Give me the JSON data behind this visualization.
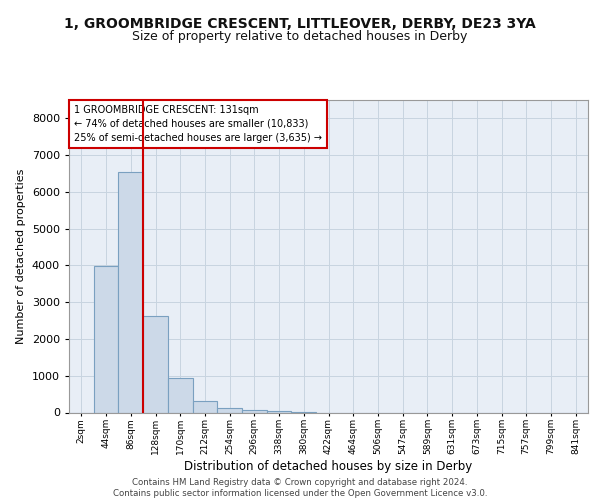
{
  "title1": "1, GROOMBRIDGE CRESCENT, LITTLEOVER, DERBY, DE23 3YA",
  "title2": "Size of property relative to detached houses in Derby",
  "xlabel": "Distribution of detached houses by size in Derby",
  "ylabel": "Number of detached properties",
  "categories": [
    "2sqm",
    "44sqm",
    "86sqm",
    "128sqm",
    "170sqm",
    "212sqm",
    "254sqm",
    "296sqm",
    "338sqm",
    "380sqm",
    "422sqm",
    "464sqm",
    "506sqm",
    "547sqm",
    "589sqm",
    "631sqm",
    "673sqm",
    "715sqm",
    "757sqm",
    "799sqm",
    "841sqm"
  ],
  "values": [
    0,
    3980,
    6530,
    2620,
    940,
    320,
    130,
    80,
    40,
    20,
    0,
    0,
    0,
    0,
    0,
    0,
    0,
    0,
    0,
    0,
    0
  ],
  "bar_color": "#ccd9e8",
  "bar_edge_color": "#7aa0c0",
  "grid_color": "#c8d4e0",
  "background_color": "#e8eef6",
  "vline_x": 2.5,
  "vline_color": "#cc0000",
  "annotation_text": "1 GROOMBRIDGE CRESCENT: 131sqm\n← 74% of detached houses are smaller (10,833)\n25% of semi-detached houses are larger (3,635) →",
  "annotation_box_color": "#cc0000",
  "ylim": [
    0,
    8500
  ],
  "yticks": [
    0,
    1000,
    2000,
    3000,
    4000,
    5000,
    6000,
    7000,
    8000
  ],
  "footer_text": "Contains HM Land Registry data © Crown copyright and database right 2024.\nContains public sector information licensed under the Open Government Licence v3.0.",
  "title1_fontsize": 10,
  "title2_fontsize": 9
}
